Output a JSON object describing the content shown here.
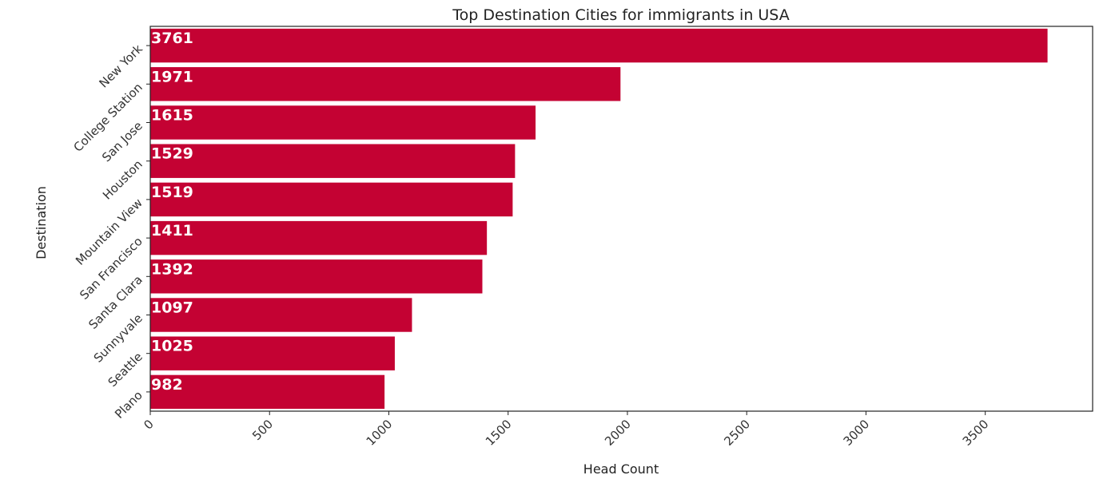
{
  "chart_data": {
    "type": "bar",
    "orientation": "horizontal",
    "title": "Top Destination Cities for immigrants in USA",
    "xlabel": "Head Count",
    "ylabel": "Destination",
    "categories": [
      "New York",
      "College Station",
      "San Jose",
      "Houston",
      "Mountain View",
      "San Francisco",
      "Santa Clara",
      "Sunnyvale",
      "Seattle",
      "Plano"
    ],
    "values": [
      3761,
      1971,
      1615,
      1529,
      1519,
      1411,
      1392,
      1097,
      1025,
      982
    ],
    "data_labels": [
      "3761",
      "1971",
      "1615",
      "1529",
      "1519",
      "1411",
      "1392",
      "1097",
      "1025",
      "982"
    ],
    "xlim": [
      0,
      3950
    ],
    "xticks": [
      0,
      500,
      1000,
      1500,
      2000,
      2500,
      3000,
      3500
    ],
    "xtick_labels": [
      "0",
      "500",
      "1000",
      "1500",
      "2000",
      "2500",
      "3000",
      "3500"
    ],
    "grid": false,
    "legend": false,
    "bar_color": "#c40233",
    "label_color": "#ffffff"
  }
}
